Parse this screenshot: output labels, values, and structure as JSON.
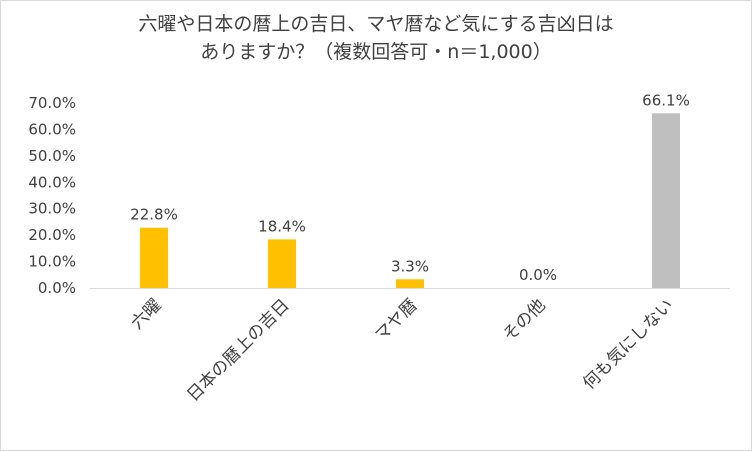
{
  "chart_data": {
    "type": "bar",
    "title": "六曜や日本の暦上の吉日、マヤ暦など気にする吉凶日はありますか？（複数回答可・n＝1,000）",
    "title_lines": [
      "六曜や日本の暦上の吉日、マヤ暦など気にする吉凶日は",
      "ありますか？（複数回答可・n＝1,000）"
    ],
    "categories": [
      "六曜",
      "日本の暦上の吉日",
      "マヤ暦",
      "その他",
      "何も気にしない"
    ],
    "values": [
      22.8,
      18.4,
      3.3,
      0.0,
      66.1
    ],
    "data_labels": [
      "22.8%",
      "18.4%",
      "3.3%",
      "0.0%",
      "66.1%"
    ],
    "bar_colors": [
      "#ffc000",
      "#ffc000",
      "#ffc000",
      "#ffc000",
      "#bfbfbf"
    ],
    "y_ticks": [
      "0.0%",
      "10.0%",
      "20.0%",
      "30.0%",
      "40.0%",
      "50.0%",
      "60.0%",
      "70.0%"
    ],
    "ylim": [
      0,
      70
    ],
    "xlabel": "",
    "ylabel": "",
    "grid": false,
    "legend": "none"
  }
}
